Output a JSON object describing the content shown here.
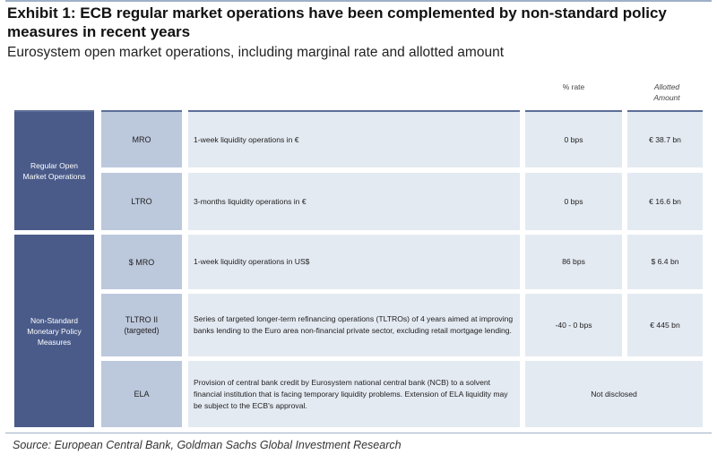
{
  "title": "Exhibit 1: ECB regular market operations have been complemented by non-standard policy measures in recent years",
  "subtitle": "Eurosystem open market operations, including marginal rate and allotted amount",
  "headers": {
    "rate": "% rate",
    "amount": "Allotted Amount"
  },
  "categories": [
    {
      "label": "Regular Open Market Operations"
    },
    {
      "label": "Non-Standard Monetary Policy Measures"
    }
  ],
  "rows": [
    {
      "code": "MRO",
      "description": "1-week liquidity operations in €",
      "rate": "0 bps",
      "amount": "€ 38.7 bn"
    },
    {
      "code": "LTRO",
      "description": "3-months liquidity operations in €",
      "rate": "0 bps",
      "amount": "€ 16.6 bn"
    },
    {
      "code": "$ MRO",
      "description": "1-week liquidity operations in US$",
      "rate": "86 bps",
      "amount": "$ 6.4 bn"
    },
    {
      "code": "TLTRO II (targeted)",
      "description": "Series of targeted longer-term refinancing operations (TLTROs) of 4 years aimed at improving banks lending to the Euro area non-financial private sector, excluding retail mortgage lending.",
      "rate": "-40 - 0 bps",
      "amount": "€ 445 bn"
    },
    {
      "code": "ELA",
      "description": "Provision of central bank credit by Eurosystem national central bank (NCB) to a solvent financial institution that is facing temporary liquidity problems. Extension of ELA liquidity may be subject to the ECB's approval.",
      "merged": "Not disclosed"
    }
  ],
  "source": "Source: European Central Bank, Goldman Sachs Global Investment Research"
}
